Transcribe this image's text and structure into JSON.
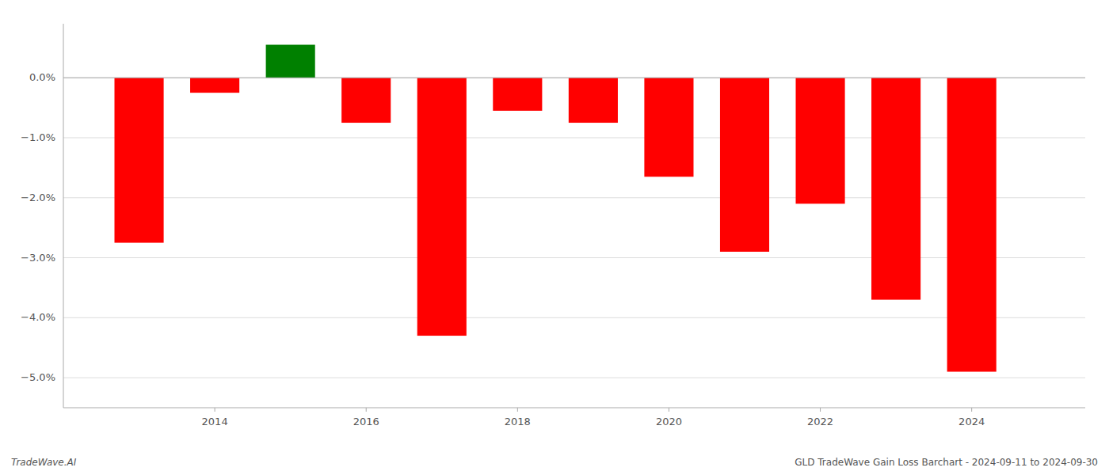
{
  "chart_data": {
    "type": "bar",
    "title": "GLD TradeWave Gain Loss Barchart - 2024-09-11 to 2024-09-30",
    "annotations": [
      "TradeWave.AI"
    ],
    "x": [
      2013,
      2014,
      2015,
      2016,
      2017,
      2018,
      2019,
      2020,
      2021,
      2022,
      2023,
      2024
    ],
    "values": [
      -2.75,
      -0.25,
      0.55,
      -0.75,
      -4.3,
      -0.55,
      -0.75,
      -1.65,
      -2.9,
      -2.1,
      -3.7,
      -4.9
    ],
    "colors": [
      "#ff0000",
      "#ff0000",
      "#008000",
      "#ff0000",
      "#ff0000",
      "#ff0000",
      "#ff0000",
      "#ff0000",
      "#ff0000",
      "#ff0000",
      "#ff0000",
      "#ff0000"
    ],
    "xlim": [
      2012.0,
      2025.5
    ],
    "xticks": [
      2014,
      2016,
      2018,
      2020,
      2022,
      2024
    ],
    "ylim": [
      -5.5,
      0.9
    ],
    "yticks": [
      {
        "value": 0.0,
        "label": "0.0%"
      },
      {
        "value": -1.0,
        "label": "−1.0%"
      },
      {
        "value": -2.0,
        "label": "−2.0%"
      },
      {
        "value": -3.0,
        "label": "−3.0%"
      },
      {
        "value": -4.0,
        "label": "−4.0%"
      },
      {
        "value": -5.0,
        "label": "−5.0%"
      }
    ],
    "grid": true
  }
}
